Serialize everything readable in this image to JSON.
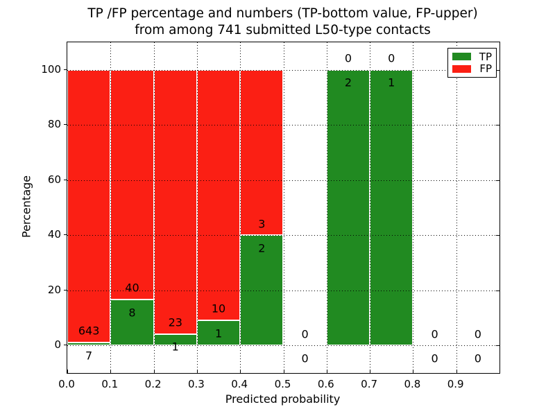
{
  "title": {
    "line1": "TP /FP percentage and numbers (TP-bottom value, FP-upper)",
    "line2": "from among 741 submitted L50-type contacts"
  },
  "chart_data": {
    "type": "bar",
    "stacked": true,
    "title": "TP /FP percentage and numbers (TP-bottom value, FP-upper)\nfrom among 741 submitted L50-type contacts",
    "xlabel": "Predicted probability",
    "ylabel": "Percentage",
    "total_contacts": 741,
    "xlim": [
      0.0,
      1.0
    ],
    "ylim": [
      -10,
      110
    ],
    "xticks": [
      "0.0",
      "0.1",
      "0.2",
      "0.3",
      "0.4",
      "0.5",
      "0.6",
      "0.7",
      "0.8",
      "0.9"
    ],
    "yticks": [
      0,
      20,
      40,
      60,
      80,
      100
    ],
    "grid": {
      "style": "dotted",
      "color": "#000000",
      "on": true
    },
    "bar_edge_color": "#ffffff",
    "bins": [
      {
        "x_start": 0.0,
        "x_end": 0.1,
        "tp_count": 7,
        "fp_count": 643,
        "tp_pct": 1.08,
        "fp_pct": 98.92
      },
      {
        "x_start": 0.1,
        "x_end": 0.2,
        "tp_count": 8,
        "fp_count": 40,
        "tp_pct": 16.67,
        "fp_pct": 83.33
      },
      {
        "x_start": 0.2,
        "x_end": 0.3,
        "tp_count": 1,
        "fp_count": 23,
        "tp_pct": 4.17,
        "fp_pct": 95.83
      },
      {
        "x_start": 0.3,
        "x_end": 0.4,
        "tp_count": 1,
        "fp_count": 10,
        "tp_pct": 9.09,
        "fp_pct": 90.91
      },
      {
        "x_start": 0.4,
        "x_end": 0.5,
        "tp_count": 2,
        "fp_count": 3,
        "tp_pct": 40.0,
        "fp_pct": 60.0
      },
      {
        "x_start": 0.5,
        "x_end": 0.6,
        "tp_count": 0,
        "fp_count": 0,
        "tp_pct": 0,
        "fp_pct": 0
      },
      {
        "x_start": 0.6,
        "x_end": 0.7,
        "tp_count": 2,
        "fp_count": 0,
        "tp_pct": 100,
        "fp_pct": 0
      },
      {
        "x_start": 0.7,
        "x_end": 0.8,
        "tp_count": 1,
        "fp_count": 0,
        "tp_pct": 100,
        "fp_pct": 0
      },
      {
        "x_start": 0.8,
        "x_end": 0.9,
        "tp_count": 0,
        "fp_count": 0,
        "tp_pct": 0,
        "fp_pct": 0
      },
      {
        "x_start": 0.9,
        "x_end": 1.0,
        "tp_count": 0,
        "fp_count": 0,
        "tp_pct": 0,
        "fp_pct": 0
      }
    ],
    "legend": {
      "position": "upper right",
      "entries": [
        {
          "label": "TP",
          "color": "#218a21"
        },
        {
          "label": "FP",
          "color": "#fb1f14"
        }
      ]
    },
    "colors": {
      "tp": "#218a21",
      "fp": "#fb1f14",
      "text": "#000000",
      "background": "#ffffff"
    }
  }
}
